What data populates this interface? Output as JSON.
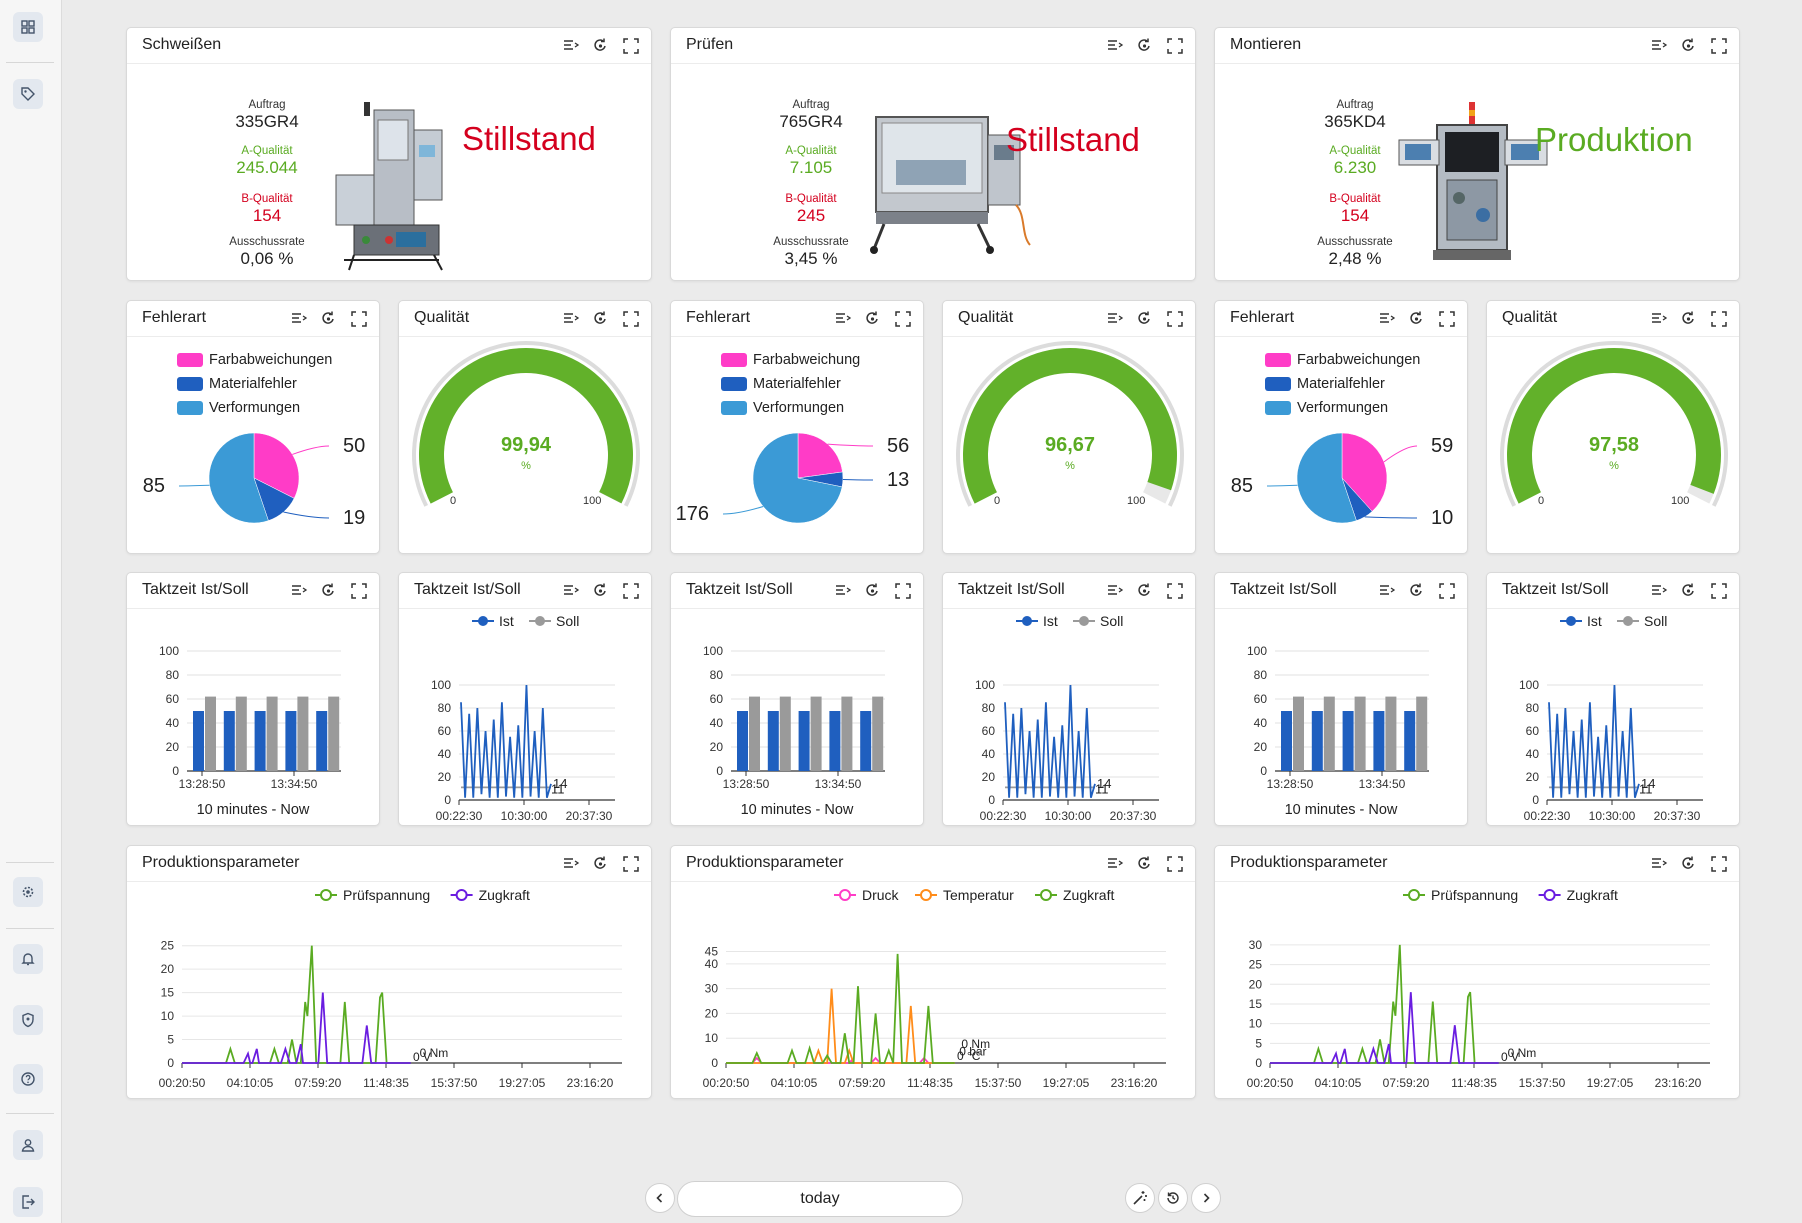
{
  "machines": [
    {
      "title": "Schweißen",
      "auftrag_label": "Auftrag",
      "auftrag": "335GR4",
      "a_label": "A-Qualität",
      "a_value": "245.044",
      "b_label": "B-Qualität",
      "b_value": "154",
      "reject_label": "Ausschussrate",
      "reject_value": "0,06 %",
      "status": "Stillstand",
      "status_color": "#d4001e"
    },
    {
      "title": "Prüfen",
      "auftrag_label": "Auftrag",
      "auftrag": "765GR4",
      "a_label": "A-Qualität",
      "a_value": "7.105",
      "b_label": "B-Qualität",
      "b_value": "245",
      "reject_label": "Ausschussrate",
      "reject_value": "3,45 %",
      "status": "Stillstand",
      "status_color": "#d4001e"
    },
    {
      "title": "Montieren",
      "auftrag_label": "Auftrag",
      "auftrag": "365KD4",
      "a_label": "A-Qualität",
      "a_value": "6.230",
      "b_label": "B-Qualität",
      "b_value": "154",
      "reject_label": "Ausschussrate",
      "reject_value": "2,48 %",
      "status": "Produktion",
      "status_color": "#5aab22"
    }
  ],
  "fehlerart": [
    {
      "title": "Fehlerart",
      "legend": [
        "Farbabweichungen",
        "Materialfehler",
        "Verformungen"
      ],
      "values": [
        50,
        19,
        85
      ]
    },
    {
      "title": "Fehlerart",
      "legend": [
        "Farbabweichung",
        "Materialfehler",
        "Verformungen"
      ],
      "values": [
        56,
        13,
        176
      ]
    },
    {
      "title": "Fehlerart",
      "legend": [
        "Farbabweichungen",
        "Materialfehler",
        "Verformungen"
      ],
      "values": [
        59,
        10,
        85
      ]
    }
  ],
  "qualitaet": [
    {
      "title": "Qualität",
      "value": "99,94",
      "unit": "%",
      "min": "0",
      "max": "100",
      "level": 0.9994
    },
    {
      "title": "Qualität",
      "value": "96,67",
      "unit": "%",
      "min": "0",
      "max": "100",
      "level": 0.9667
    },
    {
      "title": "Qualität",
      "value": "97,58",
      "unit": "%",
      "min": "0",
      "max": "100",
      "level": 0.9758
    }
  ],
  "takt_bar": {
    "title": "Taktzeit Ist/Soll",
    "footer": "10 minutes - Now",
    "x_ticks": [
      "13:28:50",
      "13:34:50"
    ],
    "y_ticks": [
      "0",
      "20",
      "40",
      "60",
      "80",
      "100"
    ],
    "ylim": [
      0,
      100
    ],
    "ist": [
      50,
      50,
      50,
      50,
      50
    ],
    "soll": [
      62,
      62,
      62,
      62,
      62
    ]
  },
  "takt_line": {
    "title": "Taktzeit Ist/Soll",
    "legend": [
      "Ist",
      "Soll"
    ],
    "x_ticks": [
      "00:22:30",
      "10:30:00",
      "20:37:30"
    ],
    "y_ticks": [
      "0",
      "20",
      "40",
      "60",
      "80",
      "100"
    ],
    "ylim": [
      0,
      100
    ],
    "end_labels": [
      "14",
      "11"
    ],
    "ist": [
      85,
      2,
      75,
      2,
      80,
      5,
      60,
      2,
      70,
      2,
      85,
      3,
      55,
      2,
      65,
      2,
      100,
      3,
      60,
      2,
      80,
      2,
      14
    ],
    "soll": [
      11,
      11,
      11,
      11,
      11,
      11,
      11,
      11,
      11,
      11,
      11,
      11,
      11,
      11,
      11,
      11,
      11,
      11,
      11,
      11,
      11,
      11,
      11
    ]
  },
  "produktion": [
    {
      "title": "Produktionsparameter",
      "legend": [
        "Prüfspannung",
        "Zugkraft"
      ],
      "legend_colors": [
        "#5aab22",
        "#6a1de0"
      ],
      "y_ticks": [
        "0",
        "5",
        "10",
        "15",
        "20",
        "25"
      ],
      "ylim": [
        0,
        26
      ],
      "x_ticks": [
        "00:20:50",
        "04:10:05",
        "07:59:20",
        "11:48:35",
        "15:37:50",
        "19:27:05",
        "23:16:20"
      ],
      "end_labels": [
        "0 Nm",
        "0 V"
      ]
    },
    {
      "title": "Produktionsparameter",
      "legend": [
        "Druck",
        "Temperatur",
        "Zugkraft"
      ],
      "legend_colors": [
        "#ff3cc7",
        "#ff8c1a",
        "#5aab22"
      ],
      "y_ticks": [
        "0",
        "10",
        "20",
        "30",
        "40",
        "45"
      ],
      "ylim": [
        0,
        46
      ],
      "x_ticks": [
        "00:20:50",
        "04:10:05",
        "07:59:20",
        "11:48:35",
        "15:37:50",
        "19:27:05",
        "23:16:20"
      ],
      "end_labels": [
        "0 Nm",
        "0 bar",
        "0 °C"
      ]
    },
    {
      "title": "Produktionsparameter",
      "legend": [
        "Prüfspannung",
        "Zugkraft"
      ],
      "legend_colors": [
        "#5aab22",
        "#6a1de0"
      ],
      "y_ticks": [
        "0",
        "5",
        "10",
        "15",
        "20",
        "25",
        "30"
      ],
      "ylim": [
        0,
        31
      ],
      "x_ticks": [
        "00:20:50",
        "04:10:05",
        "07:59:20",
        "11:48:35",
        "15:37:50",
        "19:27:05",
        "23:16:20"
      ],
      "end_labels": [
        "0 Nm",
        "0 V"
      ]
    }
  ],
  "nav": {
    "date_label": "today"
  },
  "colors": {
    "pink": "#ff3cc7",
    "dark_blue": "#1f5fbf",
    "light_blue": "#3b9ad6",
    "green": "#62b12a",
    "gray": "#9a9a9a",
    "purple": "#6a1de0",
    "orange": "#ff8c1a"
  }
}
